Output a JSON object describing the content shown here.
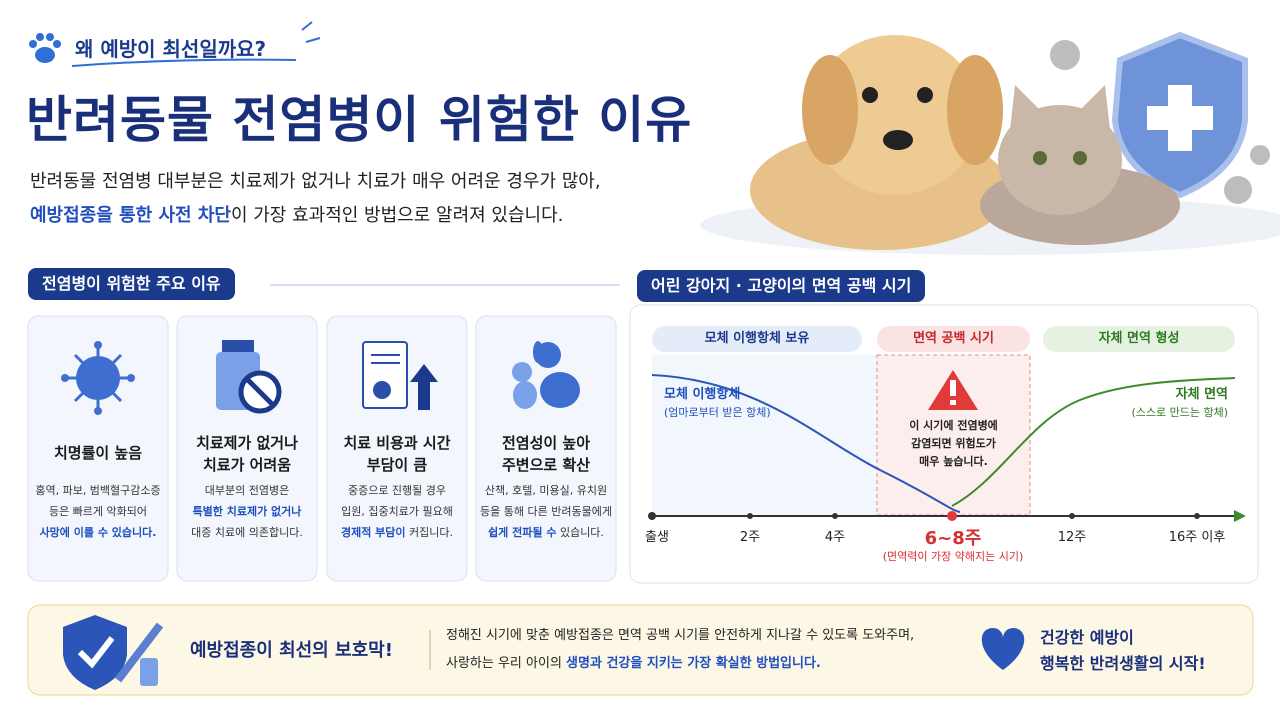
{
  "header": {
    "kicker": "왜 예방이 최선일까요?",
    "title": "반려동물 전염병이 위험한 이유",
    "intro": [
      [
        {
          "text": "반려동물 전염병 대부분은 치료제가 없거나 치료가 매우 어려운 경우가 많아,"
        }
      ],
      [
        {
          "text": "예방접종을 통한 사전 차단",
          "emphasis": true
        },
        {
          "text": "이 가장 효과적인 방법으로 알려져 있습니다."
        }
      ]
    ]
  },
  "reasons": {
    "heading": "전염병이 위험한 주요 이유",
    "cards": [
      {
        "title": [
          "치명률이 높음"
        ],
        "desc": [
          [
            {
              "text": "홍역, 파보, 범백혈구감소증"
            }
          ],
          [
            {
              "text": "등은 빠르게 악화되어"
            }
          ],
          [
            {
              "text": "사망에 이를 수 있습니다.",
              "emphasis": true
            }
          ]
        ]
      },
      {
        "title": [
          "치료제가 없거나",
          "치료가 어려움"
        ],
        "desc": [
          [
            {
              "text": "대부분의 전염병은"
            }
          ],
          [
            {
              "text": "특별한 치료제가 없거나",
              "emphasis": true
            }
          ],
          [
            {
              "text": "대증 치료에 의존합니다."
            }
          ]
        ]
      },
      {
        "title": [
          "치료 비용과 시간",
          "부담이 큼"
        ],
        "desc": [
          [
            {
              "text": "중증으로 진행될 경우"
            }
          ],
          [
            {
              "text": "입원, 집중치료가 필요해"
            }
          ],
          [
            {
              "text": "경제적 부담이",
              "emphasis": true
            },
            {
              "text": " 커집니다."
            }
          ]
        ]
      },
      {
        "title": [
          "전염성이 높아",
          "주변으로 확산"
        ],
        "desc": [
          [
            {
              "text": "산책, 호텔, 미용실, 유치원"
            }
          ],
          [
            {
              "text": "등을 통해 다른 반려동물에게"
            }
          ],
          [
            {
              "text": "쉽게 전파될 수",
              "emphasis": true
            },
            {
              "text": " 있습니다."
            }
          ]
        ]
      }
    ]
  },
  "timeline": {
    "heading": "어린 강아지 · 고양이의 면역 공백 시기",
    "phases": [
      "모체 이행항체 보유",
      "면역 공백 시기",
      "자체 면역 형성"
    ],
    "maternal": {
      "label": "모체 이행항체",
      "sub": "(엄마로부터 받은 항체)"
    },
    "own": {
      "label": "자체 면역",
      "sub": "(스스로 만드는 항체)"
    },
    "warning": [
      "이 시기에 전염병에",
      "감염되면 위험도가",
      "매우 높습니다."
    ],
    "ticks": [
      "출생",
      "2주",
      "4주",
      "6~8주",
      "12주",
      "16주 이후"
    ],
    "critical_note": "(면역력이 가장 약해지는 시기)"
  },
  "footer": {
    "title": "예방접종이 최선의 보호막!",
    "body": [
      [
        {
          "text": "정해진 시기에 맞춘 예방접종은 면역 공백 시기를 안전하게 지나갈 수 있도록 도와주며,"
        }
      ],
      [
        {
          "text": "사랑하는 우리 아이의 "
        },
        {
          "text": "생명과 건강을 지키는 가장 확실한 방법입니다.",
          "emphasis": true
        }
      ]
    ],
    "slogan": [
      "건강한 예방이",
      "행복한 반려생활의 시작!"
    ]
  }
}
